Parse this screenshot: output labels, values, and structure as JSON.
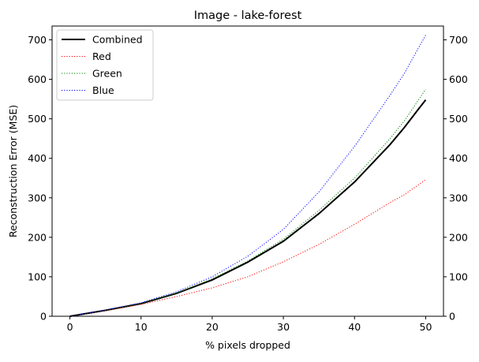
{
  "chart_data": {
    "type": "line",
    "title": "Image - lake-forest",
    "xlabel": "% pixels dropped",
    "ylabel": "Reconstruction Error (MSE)",
    "xlim": [
      -2.5,
      52.5
    ],
    "ylim": [
      0,
      735
    ],
    "xticks": [
      0,
      10,
      20,
      30,
      40,
      50
    ],
    "yticks": [
      0,
      100,
      200,
      300,
      400,
      500,
      600,
      700
    ],
    "right_axis_duplicate_ticks": true,
    "grid": false,
    "legend_position": "top-left",
    "x": [
      0,
      5,
      10,
      15,
      20,
      25,
      30,
      35,
      40,
      45,
      47,
      49,
      50
    ],
    "series": [
      {
        "name": "Combined",
        "color": "#000000",
        "style": "solid",
        "values": [
          0,
          15,
          32,
          58,
          92,
          137,
          190,
          260,
          340,
          435,
          478,
          525,
          548
        ]
      },
      {
        "name": "Red",
        "color": "#ff0000",
        "style": "dotted",
        "values": [
          0,
          14,
          30,
          50,
          72,
          100,
          138,
          182,
          233,
          288,
          308,
          333,
          346
        ]
      },
      {
        "name": "Green",
        "color": "#008000",
        "style": "dotted",
        "values": [
          0,
          15,
          32,
          59,
          95,
          140,
          195,
          268,
          350,
          450,
          495,
          548,
          575
        ]
      },
      {
        "name": "Blue",
        "color": "#0000ff",
        "style": "dotted",
        "values": [
          0,
          16,
          34,
          62,
          100,
          152,
          220,
          315,
          430,
          560,
          615,
          680,
          712
        ]
      }
    ]
  }
}
